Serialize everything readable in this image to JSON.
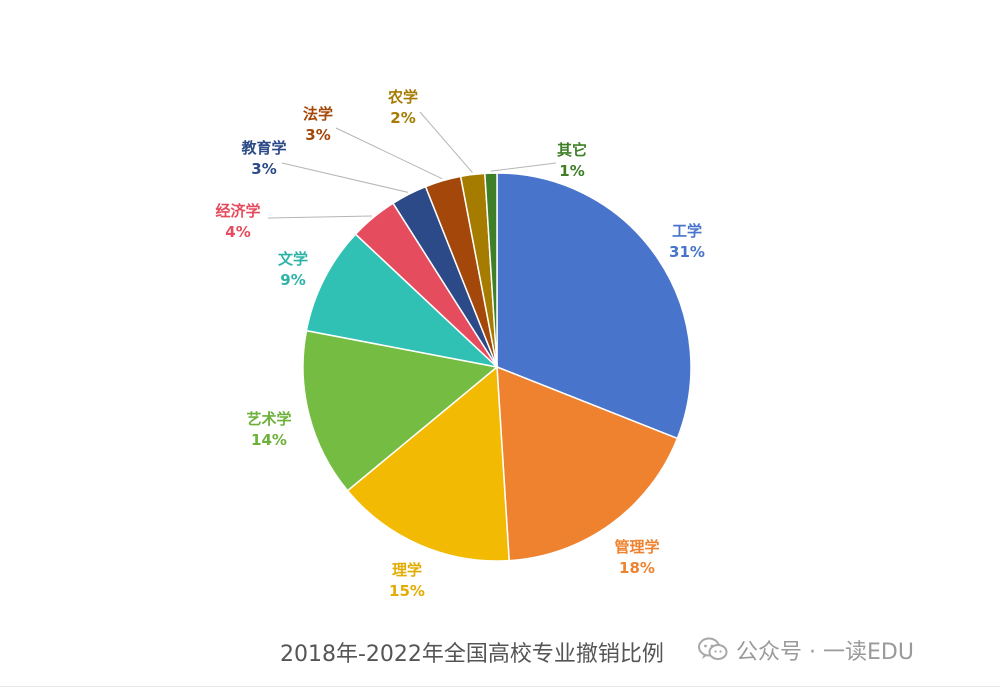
{
  "chart_data": {
    "type": "pie",
    "title": "2018年-2022年全国高校专业撤销比例",
    "start_angle_deg": 0,
    "direction": "clockwise",
    "slices": [
      {
        "label": "工学",
        "value": 31,
        "display": "31%",
        "color": "#4874CB"
      },
      {
        "label": "管理学",
        "value": 18,
        "display": "18%",
        "color": "#EE822F"
      },
      {
        "label": "理学",
        "value": 15,
        "display": "15%",
        "color": "#F2BA02"
      },
      {
        "label": "艺术学",
        "value": 14,
        "display": "14%",
        "color": "#75BD42"
      },
      {
        "label": "文学",
        "value": 9,
        "display": "9%",
        "color": "#30C0B4"
      },
      {
        "label": "经济学",
        "value": 4,
        "display": "4%",
        "color": "#E54C5E"
      },
      {
        "label": "教育学",
        "value": 3,
        "display": "3%",
        "color": "#2C4A87"
      },
      {
        "label": "法学",
        "value": 3,
        "display": "3%",
        "color": "#A3470A"
      },
      {
        "label": "农学",
        "value": 2,
        "display": "2%",
        "color": "#A57B00"
      },
      {
        "label": "其它",
        "value": 1,
        "display": "1%",
        "color": "#3F7F27"
      }
    ]
  },
  "watermark": {
    "icon": "wechat-icon",
    "text": "公众号 · 一读EDU"
  }
}
